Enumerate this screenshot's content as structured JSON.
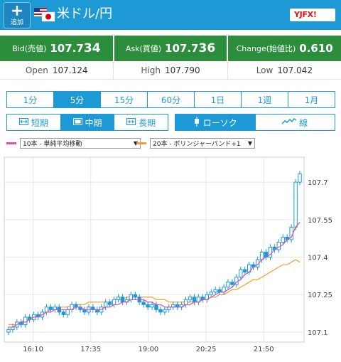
{
  "header": {
    "add_button_label": "追加",
    "pair_title": "米ドル/円",
    "logo_text": "YJFX!",
    "colors": {
      "bar": "#1d9ad6"
    }
  },
  "quote": {
    "bid_label": "Bid(売値)",
    "bid_value_main": "107.7",
    "bid_value_big": "34",
    "ask_label": "Ask(買値)",
    "ask_value_main": "107.7",
    "ask_value_big": "36",
    "change_label": "Change(始値比)",
    "change_value": "0.610"
  },
  "stats": {
    "open_label": "Open",
    "open_value": "107.124",
    "high_label": "High",
    "high_value": "107.790",
    "low_label": "Low",
    "low_value": "107.042"
  },
  "timeframes": [
    "1分",
    "5分",
    "15分",
    "60分",
    "1日",
    "1週",
    "1月"
  ],
  "timeframe_active": 1,
  "ranges": [
    {
      "icon": "↔",
      "label": "短期"
    },
    {
      "icon": "▭",
      "label": "中期"
    },
    {
      "icon": "↔",
      "label": "長期"
    }
  ],
  "range_active": 1,
  "styles": [
    {
      "icon": "candle-icon",
      "label": "ローソク"
    },
    {
      "icon": "line-icon",
      "label": "線"
    }
  ],
  "style_active": 0,
  "indicators": {
    "sma": {
      "label": "10本 - 単純平均移動",
      "color": "#d94fb2"
    },
    "bb": {
      "label": "20本 - ボリンジャーバンド+1",
      "color": "#f0a030"
    }
  },
  "chart_data": {
    "type": "candlestick",
    "y_ticks": [
      "107.7",
      "107.55",
      "107.4",
      "107.25",
      "107.1"
    ],
    "y_tick_values": [
      107.7,
      107.55,
      107.4,
      107.25,
      107.1
    ],
    "x_ticks": [
      "16:10",
      "17:35",
      "19:00",
      "20:25",
      "21:50"
    ],
    "ylim": [
      107.06,
      107.8
    ],
    "grid": true,
    "candle_color": "#1d9ad6",
    "sma_color": "#d94fb2",
    "bb_color": "#f0a030",
    "closes": [
      107.11,
      107.12,
      107.14,
      107.13,
      107.16,
      107.15,
      107.17,
      107.16,
      107.18,
      107.2,
      107.19,
      107.2,
      107.18,
      107.17,
      107.19,
      107.21,
      107.2,
      107.19,
      107.18,
      107.2,
      107.19,
      107.18,
      107.2,
      107.22,
      107.21,
      107.23,
      107.24,
      107.22,
      107.23,
      107.25,
      107.24,
      107.22,
      107.21,
      107.2,
      107.21,
      107.19,
      107.18,
      107.19,
      107.2,
      107.21,
      107.2,
      107.21,
      107.23,
      107.24,
      107.22,
      107.24,
      107.23,
      107.25,
      107.26,
      107.27,
      107.26,
      107.28,
      107.3,
      107.29,
      107.32,
      107.35,
      107.34,
      107.37,
      107.36,
      107.39,
      107.42,
      107.4,
      107.44,
      107.43,
      107.46,
      107.48,
      107.47,
      107.52,
      107.7,
      107.734
    ],
    "sma": [
      107.12,
      107.12,
      107.13,
      107.14,
      107.14,
      107.15,
      107.16,
      107.16,
      107.17,
      107.18,
      107.18,
      107.19,
      107.19,
      107.19,
      107.19,
      107.19,
      107.2,
      107.2,
      107.19,
      107.19,
      107.19,
      107.19,
      107.19,
      107.2,
      107.2,
      107.21,
      107.21,
      107.22,
      107.22,
      107.23,
      107.23,
      107.23,
      107.23,
      107.22,
      107.22,
      107.21,
      107.21,
      107.2,
      107.2,
      107.2,
      107.2,
      107.2,
      107.21,
      107.21,
      107.22,
      107.22,
      107.23,
      107.23,
      107.24,
      107.25,
      107.26,
      107.26,
      107.27,
      107.28,
      107.3,
      107.31,
      107.33,
      107.34,
      107.36,
      107.37,
      107.39,
      107.4,
      107.41,
      107.43,
      107.44,
      107.45,
      107.47,
      107.48,
      107.52,
      107.54
    ],
    "bb": [
      107.13,
      107.13,
      107.13,
      107.14,
      107.15,
      107.15,
      107.16,
      107.17,
      107.17,
      107.18,
      107.19,
      107.19,
      107.2,
      107.2,
      107.2,
      107.21,
      107.21,
      107.21,
      107.21,
      107.22,
      107.22,
      107.22,
      107.22,
      107.22,
      107.22,
      107.23,
      107.23,
      107.23,
      107.24,
      107.24,
      107.24,
      107.24,
      107.24,
      107.24,
      107.24,
      107.23,
      107.23,
      107.23,
      107.22,
      107.22,
      107.22,
      107.22,
      107.22,
      107.22,
      107.22,
      107.23,
      107.23,
      107.23,
      107.24,
      107.24,
      107.25,
      107.25,
      107.26,
      107.27,
      107.27,
      107.28,
      107.29,
      107.3,
      107.31,
      107.31,
      107.32,
      107.33,
      107.34,
      107.35,
      107.36,
      107.37,
      107.37,
      107.38,
      107.39,
      107.38
    ]
  }
}
